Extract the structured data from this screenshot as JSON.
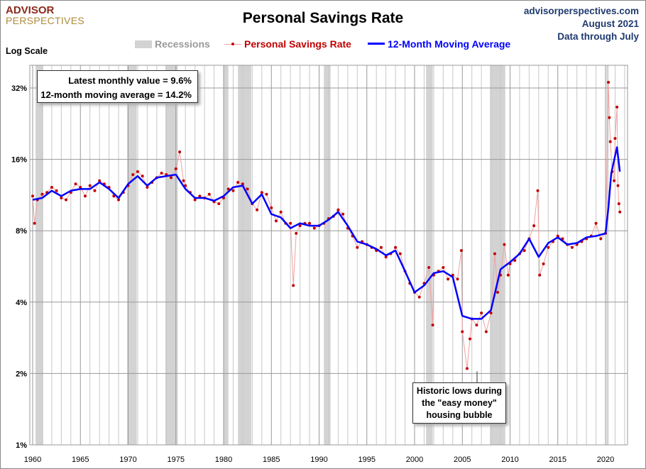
{
  "logo": {
    "line1": "ADVISOR",
    "line2": "PERSPECTIVES"
  },
  "header": {
    "title": "Personal Savings Rate",
    "source": "advisorperspectives.com",
    "date": "August 2021",
    "data_through": "Data through July",
    "log_scale_label": "Log Scale"
  },
  "legend": {
    "recessions": "Recessions",
    "monthly": "Personal Savings Rate",
    "ma": "12-Month Moving Average"
  },
  "info_box": {
    "line1": "Latest monthly value = 9.6%",
    "line2": "12-month moving average = 14.2%"
  },
  "annotation": {
    "line1": "Historic lows during",
    "line2": "the \"easy money\"",
    "line3": "housing bubble"
  },
  "colors": {
    "monthly": "#c00000",
    "monthly_line": "#f0a0a0",
    "ma": "#0000ff",
    "recession": "#d3d3d3",
    "grid": "#b0b0b0"
  },
  "chart_data": {
    "type": "line",
    "title": "Personal Savings Rate",
    "y_scale": "log2",
    "ylim": [
      1,
      40
    ],
    "xlim": [
      1959.8,
      2022.3
    ],
    "y_ticks": [
      {
        "v": 1,
        "label": "1%"
      },
      {
        "v": 2,
        "label": "2%"
      },
      {
        "v": 4,
        "label": "4%"
      },
      {
        "v": 8,
        "label": "8%"
      },
      {
        "v": 16,
        "label": "16%"
      },
      {
        "v": 32,
        "label": "32%"
      }
    ],
    "x_ticks": [
      1960,
      1965,
      1970,
      1975,
      1980,
      1985,
      1990,
      1995,
      2000,
      2005,
      2010,
      2015,
      2020
    ],
    "grid": true,
    "legend_position": "top",
    "recessions": [
      [
        1960.3,
        1961.1
      ],
      [
        1969.9,
        1970.9
      ],
      [
        1973.9,
        1975.2
      ],
      [
        1980.0,
        1980.5
      ],
      [
        1981.5,
        1982.9
      ],
      [
        1990.5,
        1991.2
      ],
      [
        2001.2,
        2001.9
      ],
      [
        2007.9,
        2009.5
      ],
      [
        2020.1,
        2020.3
      ]
    ],
    "series": [
      {
        "name": "Personal Savings Rate",
        "values": [
          [
            1960,
            11.2
          ],
          [
            1960.2,
            8.6
          ],
          [
            1960.5,
            10.8
          ],
          [
            1961,
            11.4
          ],
          [
            1961.5,
            11.6
          ],
          [
            1962,
            12.2
          ],
          [
            1962.5,
            11.8
          ],
          [
            1963,
            11.0
          ],
          [
            1963.5,
            10.8
          ],
          [
            1964,
            11.6
          ],
          [
            1964.5,
            12.6
          ],
          [
            1965,
            12.2
          ],
          [
            1965.5,
            11.2
          ],
          [
            1966,
            12.4
          ],
          [
            1966.5,
            11.8
          ],
          [
            1967,
            13.0
          ],
          [
            1967.5,
            12.6
          ],
          [
            1968,
            12.2
          ],
          [
            1968.5,
            11.2
          ],
          [
            1969,
            10.8
          ],
          [
            1969.5,
            11.6
          ],
          [
            1970,
            12.4
          ],
          [
            1970.5,
            13.8
          ],
          [
            1971,
            14.2
          ],
          [
            1971.5,
            13.6
          ],
          [
            1972,
            12.2
          ],
          [
            1972.5,
            12.8
          ],
          [
            1973,
            13.4
          ],
          [
            1973.5,
            14.0
          ],
          [
            1974,
            13.8
          ],
          [
            1974.5,
            13.4
          ],
          [
            1975,
            14.6
          ],
          [
            1975.4,
            17.2
          ],
          [
            1975.8,
            13.0
          ],
          [
            1976,
            12.4
          ],
          [
            1976.5,
            11.6
          ],
          [
            1977,
            10.8
          ],
          [
            1977.5,
            11.2
          ],
          [
            1978,
            11.0
          ],
          [
            1978.5,
            11.4
          ],
          [
            1979,
            10.6
          ],
          [
            1979.5,
            10.4
          ],
          [
            1980,
            11.0
          ],
          [
            1980.5,
            12.0
          ],
          [
            1981,
            11.8
          ],
          [
            1981.5,
            12.8
          ],
          [
            1982,
            12.6
          ],
          [
            1982.5,
            12.0
          ],
          [
            1983,
            10.4
          ],
          [
            1983.5,
            9.8
          ],
          [
            1984,
            11.6
          ],
          [
            1984.5,
            11.4
          ],
          [
            1985,
            10.0
          ],
          [
            1985.5,
            8.8
          ],
          [
            1986,
            9.6
          ],
          [
            1986.5,
            8.6
          ],
          [
            1987,
            8.6
          ],
          [
            1987.3,
            4.7
          ],
          [
            1987.6,
            7.8
          ],
          [
            1988,
            8.4
          ],
          [
            1988.5,
            8.6
          ],
          [
            1989,
            8.6
          ],
          [
            1989.5,
            8.2
          ],
          [
            1990,
            8.4
          ],
          [
            1990.5,
            8.6
          ],
          [
            1991,
            9.0
          ],
          [
            1991.5,
            9.2
          ],
          [
            1992,
            9.8
          ],
          [
            1992.5,
            9.4
          ],
          [
            1993,
            8.2
          ],
          [
            1993.5,
            7.6
          ],
          [
            1994,
            6.8
          ],
          [
            1994.5,
            7.2
          ],
          [
            1995,
            7.0
          ],
          [
            1995.5,
            6.8
          ],
          [
            1996,
            6.6
          ],
          [
            1996.5,
            6.8
          ],
          [
            1997,
            6.2
          ],
          [
            1997.5,
            6.4
          ],
          [
            1998,
            6.8
          ],
          [
            1998.5,
            6.4
          ],
          [
            1999,
            5.4
          ],
          [
            1999.5,
            4.8
          ],
          [
            2000,
            4.4
          ],
          [
            2000.5,
            4.2
          ],
          [
            2001,
            4.8
          ],
          [
            2001.5,
            5.6
          ],
          [
            2001.9,
            3.2
          ],
          [
            2002,
            5.2
          ],
          [
            2002.5,
            5.4
          ],
          [
            2003,
            5.6
          ],
          [
            2003.5,
            5.0
          ],
          [
            2004,
            5.2
          ],
          [
            2004.5,
            5.0
          ],
          [
            2004.9,
            6.6
          ],
          [
            2005,
            3.0
          ],
          [
            2005.5,
            2.1
          ],
          [
            2005.8,
            2.8
          ],
          [
            2006,
            3.4
          ],
          [
            2006.5,
            3.2
          ],
          [
            2007,
            3.6
          ],
          [
            2007.5,
            3.0
          ],
          [
            2008,
            3.6
          ],
          [
            2008.4,
            6.4
          ],
          [
            2008.7,
            4.4
          ],
          [
            2009,
            5.2
          ],
          [
            2009.4,
            7.0
          ],
          [
            2009.8,
            5.2
          ],
          [
            2010,
            5.8
          ],
          [
            2010.5,
            6.0
          ],
          [
            2011,
            6.4
          ],
          [
            2011.5,
            6.6
          ],
          [
            2012,
            7.4
          ],
          [
            2012.5,
            8.4
          ],
          [
            2012.9,
            11.8
          ],
          [
            2013.1,
            5.2
          ],
          [
            2013.5,
            5.8
          ],
          [
            2014,
            6.8
          ],
          [
            2014.5,
            7.2
          ],
          [
            2015,
            7.6
          ],
          [
            2015.5,
            7.4
          ],
          [
            2016,
            7.0
          ],
          [
            2016.5,
            6.8
          ],
          [
            2017,
            7.0
          ],
          [
            2017.5,
            7.2
          ],
          [
            2018,
            7.4
          ],
          [
            2018.5,
            7.6
          ],
          [
            2019,
            8.6
          ],
          [
            2019.5,
            7.4
          ],
          [
            2020,
            7.8
          ],
          [
            2020.3,
            33.8
          ],
          [
            2020.4,
            24.0
          ],
          [
            2020.5,
            19.0
          ],
          [
            2020.7,
            14.2
          ],
          [
            2020.9,
            13.0
          ],
          [
            2021,
            19.6
          ],
          [
            2021.2,
            26.6
          ],
          [
            2021.3,
            12.4
          ],
          [
            2021.4,
            10.4
          ],
          [
            2021.5,
            9.6
          ]
        ]
      },
      {
        "name": "12-Month Moving Average",
        "values": [
          [
            1960,
            10.8
          ],
          [
            1961,
            11.0
          ],
          [
            1962,
            11.8
          ],
          [
            1963,
            11.2
          ],
          [
            1964,
            11.8
          ],
          [
            1965,
            12.0
          ],
          [
            1966,
            12.0
          ],
          [
            1967,
            12.8
          ],
          [
            1968,
            12.0
          ],
          [
            1969,
            11.0
          ],
          [
            1970,
            12.6
          ],
          [
            1971,
            13.6
          ],
          [
            1972,
            12.4
          ],
          [
            1973,
            13.4
          ],
          [
            1974,
            13.6
          ],
          [
            1975,
            13.8
          ],
          [
            1976,
            12.0
          ],
          [
            1977,
            11.0
          ],
          [
            1978,
            11.0
          ],
          [
            1979,
            10.7
          ],
          [
            1980,
            11.2
          ],
          [
            1981,
            12.2
          ],
          [
            1982,
            12.4
          ],
          [
            1983,
            10.4
          ],
          [
            1984,
            11.4
          ],
          [
            1985,
            9.4
          ],
          [
            1986,
            9.1
          ],
          [
            1987,
            8.2
          ],
          [
            1988,
            8.6
          ],
          [
            1989,
            8.4
          ],
          [
            1990,
            8.4
          ],
          [
            1991,
            8.9
          ],
          [
            1992,
            9.6
          ],
          [
            1993,
            8.4
          ],
          [
            1994,
            7.2
          ],
          [
            1995,
            7.0
          ],
          [
            1996,
            6.7
          ],
          [
            1997,
            6.3
          ],
          [
            1998,
            6.6
          ],
          [
            1999,
            5.4
          ],
          [
            2000,
            4.4
          ],
          [
            2001,
            4.7
          ],
          [
            2002,
            5.3
          ],
          [
            2003,
            5.4
          ],
          [
            2004,
            5.1
          ],
          [
            2005,
            3.5
          ],
          [
            2006,
            3.4
          ],
          [
            2007,
            3.4
          ],
          [
            2008,
            3.7
          ],
          [
            2009,
            5.5
          ],
          [
            2010,
            5.9
          ],
          [
            2011,
            6.4
          ],
          [
            2012,
            7.4
          ],
          [
            2013,
            6.2
          ],
          [
            2014,
            7.1
          ],
          [
            2015,
            7.5
          ],
          [
            2016,
            7.0
          ],
          [
            2017,
            7.1
          ],
          [
            2018,
            7.5
          ],
          [
            2019,
            7.6
          ],
          [
            2020,
            7.8
          ],
          [
            2020.3,
            10.0
          ],
          [
            2020.6,
            14.0
          ],
          [
            2021.2,
            18.0
          ],
          [
            2021.5,
            14.2
          ]
        ]
      }
    ]
  }
}
